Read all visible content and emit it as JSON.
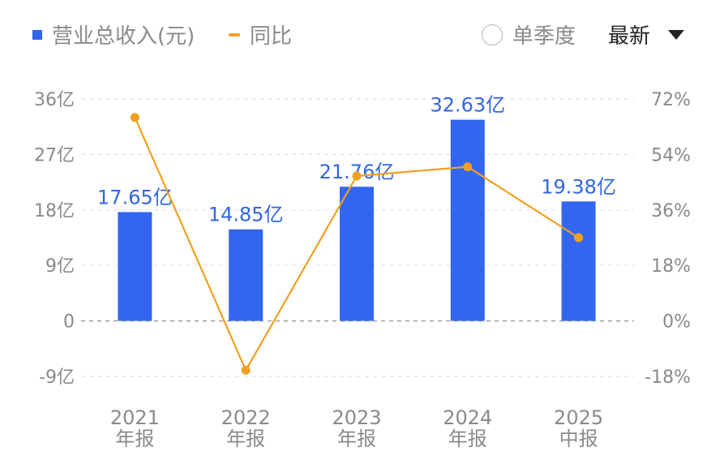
{
  "legend": {
    "bar_label": "营业总收入(元)",
    "line_label": "同比"
  },
  "controls": {
    "single_quarter_label": "单季度",
    "latest_label": "最新"
  },
  "colors": {
    "bar": "#3366f0",
    "line": "#f0a020",
    "bar_label_text": "#3366e0",
    "grid": "#e2e2e2",
    "zero_line": "#a0a0a0",
    "axis_text": "#8a8a8a"
  },
  "chart_data": {
    "type": "bar",
    "combo": "bar-line",
    "title": "",
    "xlabel": "",
    "ylabel": "",
    "categories": [
      [
        "2021",
        "年报"
      ],
      [
        "2022",
        "年报"
      ],
      [
        "2023",
        "年报"
      ],
      [
        "2024",
        "年报"
      ],
      [
        "2025",
        "中报"
      ]
    ],
    "series": [
      {
        "name": "营业总收入(元)",
        "type": "bar",
        "axis": "left",
        "unit": "亿",
        "values": [
          17.65,
          14.85,
          21.76,
          32.63,
          19.38
        ],
        "labels": [
          "17.65亿",
          "14.85亿",
          "21.76亿",
          "32.63亿",
          "19.38亿"
        ]
      },
      {
        "name": "同比",
        "type": "line",
        "axis": "right",
        "unit": "%",
        "values": [
          66,
          -16,
          47,
          50,
          27
        ]
      }
    ],
    "y_left": {
      "range": [
        -9,
        36
      ],
      "ticks": [
        36,
        27,
        18,
        9,
        0,
        -9
      ],
      "tick_labels": [
        "36亿",
        "27亿",
        "18亿",
        "9亿",
        "0",
        "-9亿"
      ]
    },
    "y_right": {
      "range": [
        -18,
        72
      ],
      "ticks": [
        72,
        54,
        36,
        18,
        0,
        -18
      ],
      "tick_labels": [
        "72%",
        "54%",
        "36%",
        "18%",
        "0%",
        "-18%"
      ]
    },
    "grid": true,
    "legend_position": "top-left"
  }
}
